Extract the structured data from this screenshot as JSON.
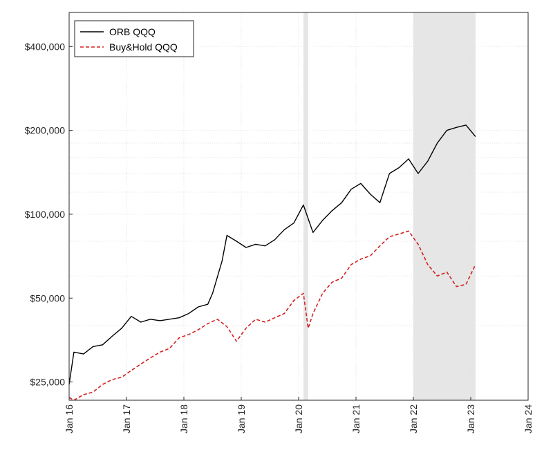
{
  "chart_data": {
    "type": "line",
    "title": "",
    "xlabel": "",
    "ylabel": "",
    "y_scale": "log",
    "xlim": [
      "2016-01",
      "2024-01"
    ],
    "ylim": [
      21500,
      530000
    ],
    "grid": true,
    "legend_position": "top-left",
    "x_ticks": [
      "Jan 16",
      "Jan 17",
      "Jan 18",
      "Jan 19",
      "Jan 20",
      "Jan 21",
      "Jan 22",
      "Jan 23",
      "Jan 24"
    ],
    "y_ticks": [
      {
        "value": 25000,
        "label": "$25,000"
      },
      {
        "value": 50000,
        "label": "$50,000"
      },
      {
        "value": 100000,
        "label": "$100,000"
      },
      {
        "value": 200000,
        "label": "$200,000"
      },
      {
        "value": 400000,
        "label": "$400,000"
      }
    ],
    "shaded_periods": [
      {
        "start": "2020-02",
        "end": "2020-03"
      },
      {
        "start": "2022-01",
        "end": "2023-02"
      }
    ],
    "series": [
      {
        "name": "ORB QQQ",
        "color": "#000000",
        "style": "solid",
        "x": [
          "2016-01",
          "2016-02",
          "2016-04",
          "2016-06",
          "2016-08",
          "2016-10",
          "2016-12",
          "2017-02",
          "2017-04",
          "2017-06",
          "2017-08",
          "2017-10",
          "2017-12",
          "2018-02",
          "2018-04",
          "2018-06",
          "2018-07",
          "2018-09",
          "2018-10",
          "2018-12",
          "2019-02",
          "2019-04",
          "2019-06",
          "2019-08",
          "2019-10",
          "2019-12",
          "2020-02",
          "2020-04",
          "2020-06",
          "2020-08",
          "2020-10",
          "2020-12",
          "2021-02",
          "2021-04",
          "2021-06",
          "2021-08",
          "2021-10",
          "2021-12",
          "2022-02",
          "2022-04",
          "2022-06",
          "2022-08",
          "2022-10",
          "2022-12",
          "2023-02"
        ],
        "values": [
          24500,
          32000,
          31500,
          33500,
          34000,
          36500,
          39000,
          43000,
          41000,
          42000,
          41500,
          42000,
          42500,
          44000,
          46500,
          47500,
          52000,
          68000,
          84000,
          80000,
          76000,
          78000,
          77000,
          81000,
          88000,
          93000,
          108000,
          86000,
          95000,
          103000,
          110000,
          123000,
          129000,
          118000,
          110000,
          140000,
          147000,
          158000,
          140000,
          155000,
          180000,
          200000,
          205000,
          209000,
          190000
        ]
      },
      {
        "name": "Buy&Hold QQQ",
        "color": "#d42020",
        "style": "dashed",
        "x": [
          "2016-01",
          "2016-02",
          "2016-04",
          "2016-06",
          "2016-08",
          "2016-10",
          "2016-12",
          "2017-02",
          "2017-04",
          "2017-06",
          "2017-08",
          "2017-10",
          "2017-12",
          "2018-02",
          "2018-04",
          "2018-06",
          "2018-08",
          "2018-10",
          "2018-12",
          "2019-02",
          "2019-04",
          "2019-06",
          "2019-08",
          "2019-10",
          "2019-12",
          "2020-02",
          "2020-03",
          "2020-04",
          "2020-06",
          "2020-08",
          "2020-10",
          "2020-12",
          "2021-02",
          "2021-04",
          "2021-06",
          "2021-08",
          "2021-10",
          "2021-12",
          "2022-02",
          "2022-04",
          "2022-06",
          "2022-08",
          "2022-10",
          "2022-12",
          "2023-02"
        ],
        "values": [
          22000,
          21500,
          22500,
          23000,
          24500,
          25500,
          26000,
          27500,
          29000,
          30500,
          32000,
          33000,
          36000,
          37000,
          38500,
          40500,
          42000,
          39500,
          35000,
          39000,
          42000,
          41000,
          42500,
          44000,
          49000,
          52000,
          39000,
          44000,
          52000,
          57000,
          59000,
          66000,
          69000,
          71000,
          77000,
          83000,
          85000,
          87000,
          78000,
          66000,
          60000,
          62000,
          55000,
          56000,
          66000
        ]
      }
    ]
  }
}
